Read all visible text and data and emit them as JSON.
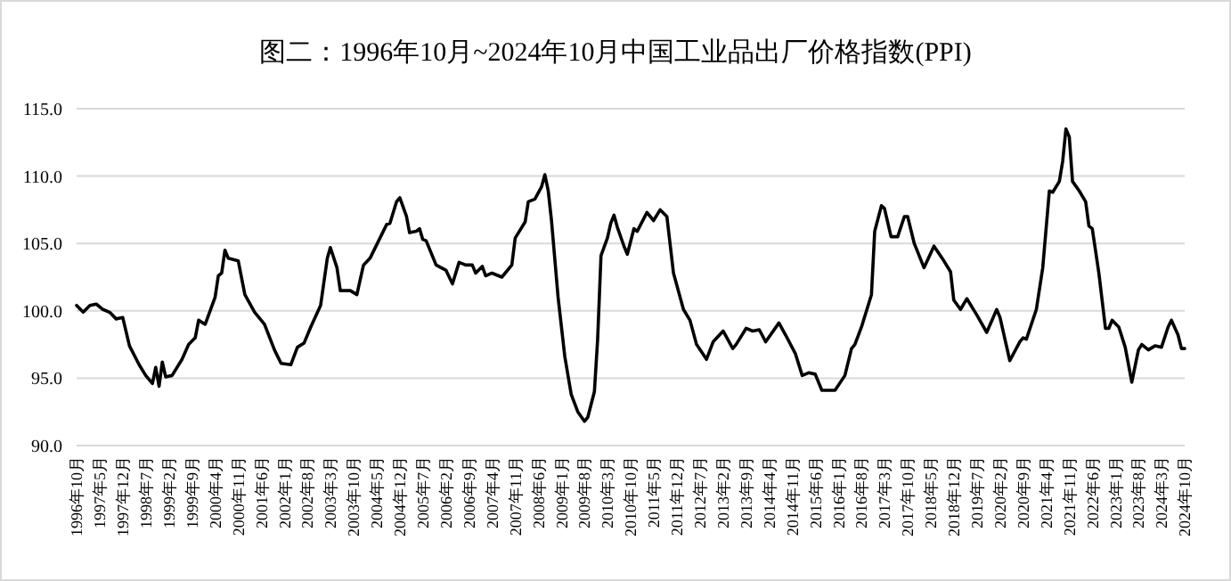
{
  "chart_data": {
    "type": "line",
    "title": "图二：1996年10月~2024年10月中国工业品出厂价格指数(PPI)",
    "x": [
      "1996-10",
      "1996-12",
      "1997-02",
      "1997-04",
      "1997-06",
      "1997-08",
      "1997-10",
      "1997-12",
      "1998-02",
      "1998-05",
      "1998-07",
      "1998-09",
      "1998-10",
      "1998-11",
      "1998-12",
      "1999-01",
      "1999-03",
      "1999-06",
      "1999-08",
      "1999-10",
      "1999-11",
      "2000-01",
      "2000-04",
      "2000-05",
      "2000-06",
      "2000-07",
      "2000-08",
      "2000-11",
      "2001-01",
      "2001-04",
      "2001-07",
      "2001-10",
      "2001-12",
      "2002-03",
      "2002-05",
      "2002-07",
      "2002-09",
      "2002-12",
      "2003-02",
      "2003-03",
      "2003-05",
      "2003-06",
      "2003-09",
      "2003-11",
      "2003-12",
      "2004-01",
      "2004-03",
      "2004-06",
      "2004-08",
      "2004-09",
      "2004-11",
      "2004-12",
      "2005-02",
      "2005-03",
      "2005-05",
      "2005-06",
      "2005-07",
      "2005-08",
      "2005-11",
      "2006-02",
      "2006-04",
      "2006-06",
      "2006-08",
      "2006-10",
      "2006-11",
      "2007-01",
      "2007-02",
      "2007-04",
      "2007-07",
      "2007-10",
      "2007-11",
      "2008-02",
      "2008-03",
      "2008-05",
      "2008-07",
      "2008-08",
      "2008-09",
      "2008-10",
      "2008-12",
      "2009-02",
      "2009-04",
      "2009-06",
      "2009-08",
      "2009-09",
      "2009-11",
      "2009-12",
      "2010-01",
      "2010-03",
      "2010-04",
      "2010-05",
      "2010-06",
      "2010-08",
      "2010-09",
      "2010-11",
      "2010-12",
      "2011-03",
      "2011-05",
      "2011-07",
      "2011-09",
      "2011-11",
      "2012-02",
      "2012-04",
      "2012-06",
      "2012-09",
      "2012-11",
      "2013-02",
      "2013-05",
      "2013-06",
      "2013-09",
      "2013-11",
      "2014-01",
      "2014-03",
      "2014-07",
      "2014-09",
      "2014-12",
      "2015-02",
      "2015-04",
      "2015-06",
      "2015-08",
      "2015-12",
      "2016-03",
      "2016-05",
      "2016-06",
      "2016-08",
      "2016-11",
      "2016-12",
      "2017-02",
      "2017-03",
      "2017-05",
      "2017-07",
      "2017-09",
      "2017-10",
      "2017-12",
      "2018-03",
      "2018-06",
      "2018-09",
      "2018-11",
      "2018-12",
      "2019-02",
      "2019-04",
      "2019-07",
      "2019-10",
      "2020-01",
      "2020-02",
      "2020-05",
      "2020-08",
      "2020-09",
      "2020-10",
      "2021-01",
      "2021-03",
      "2021-05",
      "2021-06",
      "2021-08",
      "2021-09",
      "2021-10",
      "2021-11",
      "2021-12",
      "2022-02",
      "2022-04",
      "2022-05",
      "2022-06",
      "2022-08",
      "2022-10",
      "2022-11",
      "2022-12",
      "2023-02",
      "2023-04",
      "2023-06",
      "2023-08",
      "2023-09",
      "2023-11",
      "2024-01",
      "2024-03",
      "2024-05",
      "2024-06",
      "2024-08",
      "2024-09",
      "2024-10"
    ],
    "series": [
      {
        "color": "#000000",
        "values": [
          100.4,
          99.9,
          100.4,
          100.5,
          100.1,
          99.9,
          99.4,
          99.5,
          97.4,
          96.0,
          95.2,
          94.6,
          95.8,
          94.4,
          96.2,
          95.1,
          95.2,
          96.4,
          97.5,
          98.0,
          99.3,
          99.0,
          101.0,
          102.6,
          102.8,
          104.5,
          103.9,
          103.7,
          101.2,
          99.9,
          99.0,
          97.1,
          96.1,
          96.0,
          97.3,
          97.6,
          98.8,
          100.4,
          103.9,
          104.7,
          103.2,
          101.5,
          101.5,
          101.2,
          102.3,
          103.4,
          103.9,
          105.4,
          106.4,
          106.5,
          108.1,
          108.4,
          107.0,
          105.8,
          105.9,
          106.1,
          105.3,
          105.2,
          103.4,
          103.0,
          102.0,
          103.6,
          103.4,
          103.4,
          102.8,
          103.3,
          102.6,
          102.8,
          102.5,
          103.4,
          105.4,
          106.6,
          108.1,
          108.3,
          109.2,
          110.1,
          108.9,
          106.7,
          101.0,
          96.6,
          93.8,
          92.5,
          91.8,
          92.1,
          94.0,
          97.9,
          104.1,
          105.4,
          106.5,
          107.1,
          106.2,
          104.8,
          104.2,
          106.1,
          105.9,
          107.3,
          106.7,
          107.5,
          107.0,
          102.8,
          100.1,
          99.3,
          97.5,
          96.4,
          97.7,
          98.5,
          97.2,
          97.5,
          98.7,
          98.5,
          98.6,
          97.7,
          99.1,
          98.2,
          96.8,
          95.2,
          95.4,
          95.3,
          94.1,
          94.1,
          95.2,
          97.2,
          97.5,
          98.8,
          101.2,
          105.9,
          107.8,
          107.6,
          105.5,
          105.5,
          107.0,
          107.0,
          105.0,
          103.2,
          104.8,
          103.7,
          102.9,
          100.8,
          100.1,
          100.9,
          99.7,
          98.4,
          100.1,
          99.5,
          96.3,
          97.7,
          98.0,
          97.9,
          100.1,
          103.2,
          108.9,
          108.8,
          109.6,
          111.1,
          113.5,
          112.9,
          109.6,
          108.9,
          108.1,
          106.3,
          106.1,
          102.8,
          98.7,
          98.7,
          99.3,
          98.8,
          97.3,
          94.7,
          97.1,
          97.5,
          97.1,
          97.4,
          97.3,
          98.8,
          99.3,
          98.2,
          97.2,
          97.2
        ]
      }
    ],
    "xlim": [
      "1996-10",
      "2024-10"
    ],
    "xticks": [
      {
        "value": "1996-10",
        "label": "1996年10月"
      },
      {
        "value": "1997-05",
        "label": "1997年5月"
      },
      {
        "value": "1997-12",
        "label": "1997年12月"
      },
      {
        "value": "1998-07",
        "label": "1998年7月"
      },
      {
        "value": "1999-02",
        "label": "1999年2月"
      },
      {
        "value": "1999-09",
        "label": "1999年9月"
      },
      {
        "value": "2000-04",
        "label": "2000年4月"
      },
      {
        "value": "2000-11",
        "label": "2000年11月"
      },
      {
        "value": "2001-06",
        "label": "2001年6月"
      },
      {
        "value": "2002-01",
        "label": "2002年1月"
      },
      {
        "value": "2002-08",
        "label": "2002年8月"
      },
      {
        "value": "2003-03",
        "label": "2003年3月"
      },
      {
        "value": "2003-10",
        "label": "2003年10月"
      },
      {
        "value": "2004-05",
        "label": "2004年5月"
      },
      {
        "value": "2004-12",
        "label": "2004年12月"
      },
      {
        "value": "2005-07",
        "label": "2005年7月"
      },
      {
        "value": "2006-02",
        "label": "2006年2月"
      },
      {
        "value": "2006-09",
        "label": "2006年9月"
      },
      {
        "value": "2007-04",
        "label": "2007年4月"
      },
      {
        "value": "2007-11",
        "label": "2007年11月"
      },
      {
        "value": "2008-06",
        "label": "2008年6月"
      },
      {
        "value": "2009-01",
        "label": "2009年1月"
      },
      {
        "value": "2009-08",
        "label": "2009年8月"
      },
      {
        "value": "2010-03",
        "label": "2010年3月"
      },
      {
        "value": "2010-10",
        "label": "2010年10月"
      },
      {
        "value": "2011-05",
        "label": "2011年5月"
      },
      {
        "value": "2011-12",
        "label": "2011年12月"
      },
      {
        "value": "2012-07",
        "label": "2012年7月"
      },
      {
        "value": "2013-02",
        "label": "2013年2月"
      },
      {
        "value": "2013-09",
        "label": "2013年9月"
      },
      {
        "value": "2014-04",
        "label": "2014年4月"
      },
      {
        "value": "2014-11",
        "label": "2014年11月"
      },
      {
        "value": "2015-06",
        "label": "2015年6月"
      },
      {
        "value": "2016-01",
        "label": "2016年1月"
      },
      {
        "value": "2016-08",
        "label": "2016年8月"
      },
      {
        "value": "2017-03",
        "label": "2017年3月"
      },
      {
        "value": "2017-10",
        "label": "2017年10月"
      },
      {
        "value": "2018-05",
        "label": "2018年5月"
      },
      {
        "value": "2018-12",
        "label": "2018年12月"
      },
      {
        "value": "2019-07",
        "label": "2019年7月"
      },
      {
        "value": "2020-02",
        "label": "2020年2月"
      },
      {
        "value": "2020-09",
        "label": "2020年9月"
      },
      {
        "value": "2021-04",
        "label": "2021年4月"
      },
      {
        "value": "2021-11",
        "label": "2021年11月"
      },
      {
        "value": "2022-06",
        "label": "2022年6月"
      },
      {
        "value": "2023-01",
        "label": "2023年1月"
      },
      {
        "value": "2023-08",
        "label": "2023年8月"
      },
      {
        "value": "2024-03",
        "label": "2024年3月"
      },
      {
        "value": "2024-10",
        "label": "2024年10月"
      }
    ],
    "ylim": [
      90,
      115
    ],
    "yticks": [
      {
        "value": 90,
        "label": "90.0"
      },
      {
        "value": 95,
        "label": "95.0"
      },
      {
        "value": 100,
        "label": "100.0"
      },
      {
        "value": 105,
        "label": "105.0"
      },
      {
        "value": 110,
        "label": "110.0"
      },
      {
        "value": 115,
        "label": "115.0"
      }
    ],
    "grid": "y",
    "marker": "none",
    "line_style": "solid"
  }
}
